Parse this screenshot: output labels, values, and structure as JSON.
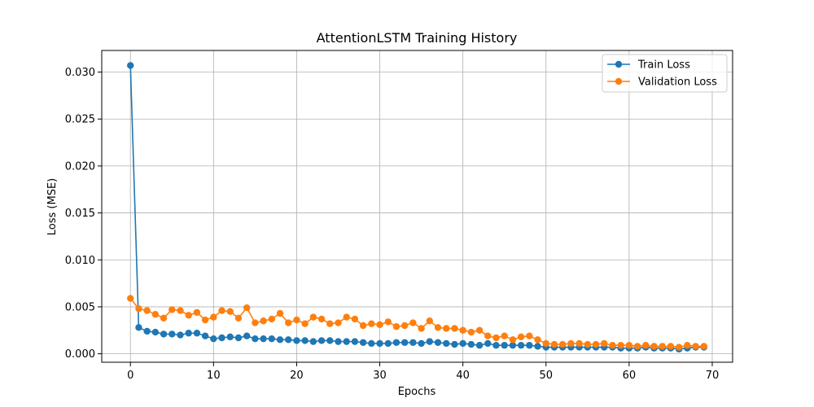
{
  "chart_data": {
    "type": "line",
    "title": "AttentionLSTM Training History",
    "xlabel": "Epochs",
    "ylabel": "Loss (MSE)",
    "xlim": [
      -3.45,
      72.45
    ],
    "ylim": [
      -0.0009,
      0.0323
    ],
    "x_ticks": [
      0,
      10,
      20,
      30,
      40,
      50,
      60,
      70
    ],
    "y_ticks": [
      0.0,
      0.005,
      0.01,
      0.015,
      0.02,
      0.025,
      0.03
    ],
    "x_tick_labels": [
      "0",
      "10",
      "20",
      "30",
      "40",
      "50",
      "60",
      "70"
    ],
    "y_tick_labels": [
      "0.000",
      "0.005",
      "0.010",
      "0.015",
      "0.020",
      "0.025",
      "0.030"
    ],
    "grid": true,
    "legend_position": "top-right",
    "x": [
      0,
      1,
      2,
      3,
      4,
      5,
      6,
      7,
      8,
      9,
      10,
      11,
      12,
      13,
      14,
      15,
      16,
      17,
      18,
      19,
      20,
      21,
      22,
      23,
      24,
      25,
      26,
      27,
      28,
      29,
      30,
      31,
      32,
      33,
      34,
      35,
      36,
      37,
      38,
      39,
      40,
      41,
      42,
      43,
      44,
      45,
      46,
      47,
      48,
      49,
      50,
      51,
      52,
      53,
      54,
      55,
      56,
      57,
      58,
      59,
      60,
      61,
      62,
      63,
      64,
      65,
      66,
      67,
      68,
      69
    ],
    "series": [
      {
        "name": "Train Loss",
        "color": "#1f77b4",
        "values": [
          0.0307,
          0.0028,
          0.0024,
          0.0023,
          0.0021,
          0.0021,
          0.002,
          0.0022,
          0.0022,
          0.0019,
          0.0016,
          0.0017,
          0.0018,
          0.0017,
          0.0019,
          0.0016,
          0.0016,
          0.0016,
          0.0015,
          0.0015,
          0.0014,
          0.0014,
          0.0013,
          0.0014,
          0.0014,
          0.0013,
          0.0013,
          0.0013,
          0.0012,
          0.0011,
          0.0011,
          0.0011,
          0.0012,
          0.0012,
          0.0012,
          0.0011,
          0.0013,
          0.0012,
          0.0011,
          0.001,
          0.0011,
          0.001,
          0.0009,
          0.0011,
          0.0009,
          0.0009,
          0.0009,
          0.0009,
          0.0009,
          0.0008,
          0.0007,
          0.0007,
          0.0007,
          0.0007,
          0.0007,
          0.0007,
          0.0007,
          0.0007,
          0.0007,
          0.0006,
          0.0006,
          0.0006,
          0.0007,
          0.0006,
          0.0006,
          0.0006,
          0.0005,
          0.0006,
          0.0007,
          0.0007
        ]
      },
      {
        "name": "Validation Loss",
        "color": "#ff7f0e",
        "values": [
          0.0059,
          0.0048,
          0.0046,
          0.0042,
          0.0038,
          0.0047,
          0.0046,
          0.0041,
          0.0044,
          0.0036,
          0.0039,
          0.0046,
          0.0045,
          0.0038,
          0.0049,
          0.0033,
          0.0035,
          0.0037,
          0.0043,
          0.0033,
          0.0036,
          0.0032,
          0.0039,
          0.0037,
          0.0032,
          0.0033,
          0.0039,
          0.0037,
          0.003,
          0.0032,
          0.0031,
          0.0034,
          0.0029,
          0.003,
          0.0033,
          0.0027,
          0.0035,
          0.0028,
          0.0027,
          0.0027,
          0.0025,
          0.0023,
          0.0025,
          0.0019,
          0.0017,
          0.0019,
          0.0015,
          0.0018,
          0.0019,
          0.0015,
          0.0011,
          0.001,
          0.001,
          0.0011,
          0.0011,
          0.001,
          0.001,
          0.0011,
          0.0009,
          0.0009,
          0.0009,
          0.0008,
          0.0009,
          0.0008,
          0.0008,
          0.0008,
          0.0007,
          0.0009,
          0.0008,
          0.0008
        ]
      }
    ]
  }
}
